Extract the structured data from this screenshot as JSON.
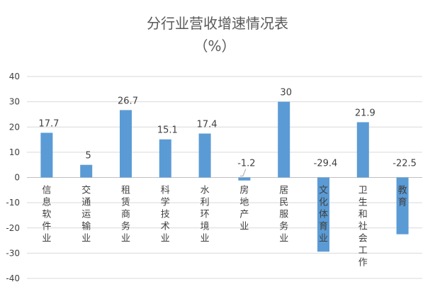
{
  "chart_data": {
    "type": "bar",
    "title": "分行业营收增速情况表",
    "subtitle": "（%）",
    "xlabel": "",
    "ylabel": "",
    "ylim": [
      -40,
      40
    ],
    "yticks": [
      -40,
      -30,
      -20,
      -10,
      0,
      10,
      20,
      30,
      40
    ],
    "grid": true,
    "categories": [
      "信息软件业",
      "交通运输业",
      "租赁商务业",
      "科学技术业",
      "水利环境业",
      "房地产业",
      "居民服务业",
      "文化体育业",
      "卫生和社会工作",
      "教育"
    ],
    "values": [
      17.7,
      5,
      26.7,
      15.1,
      17.4,
      -1.2,
      30,
      -29.4,
      21.9,
      -22.5
    ],
    "bar_color": "#5b9bd5"
  }
}
